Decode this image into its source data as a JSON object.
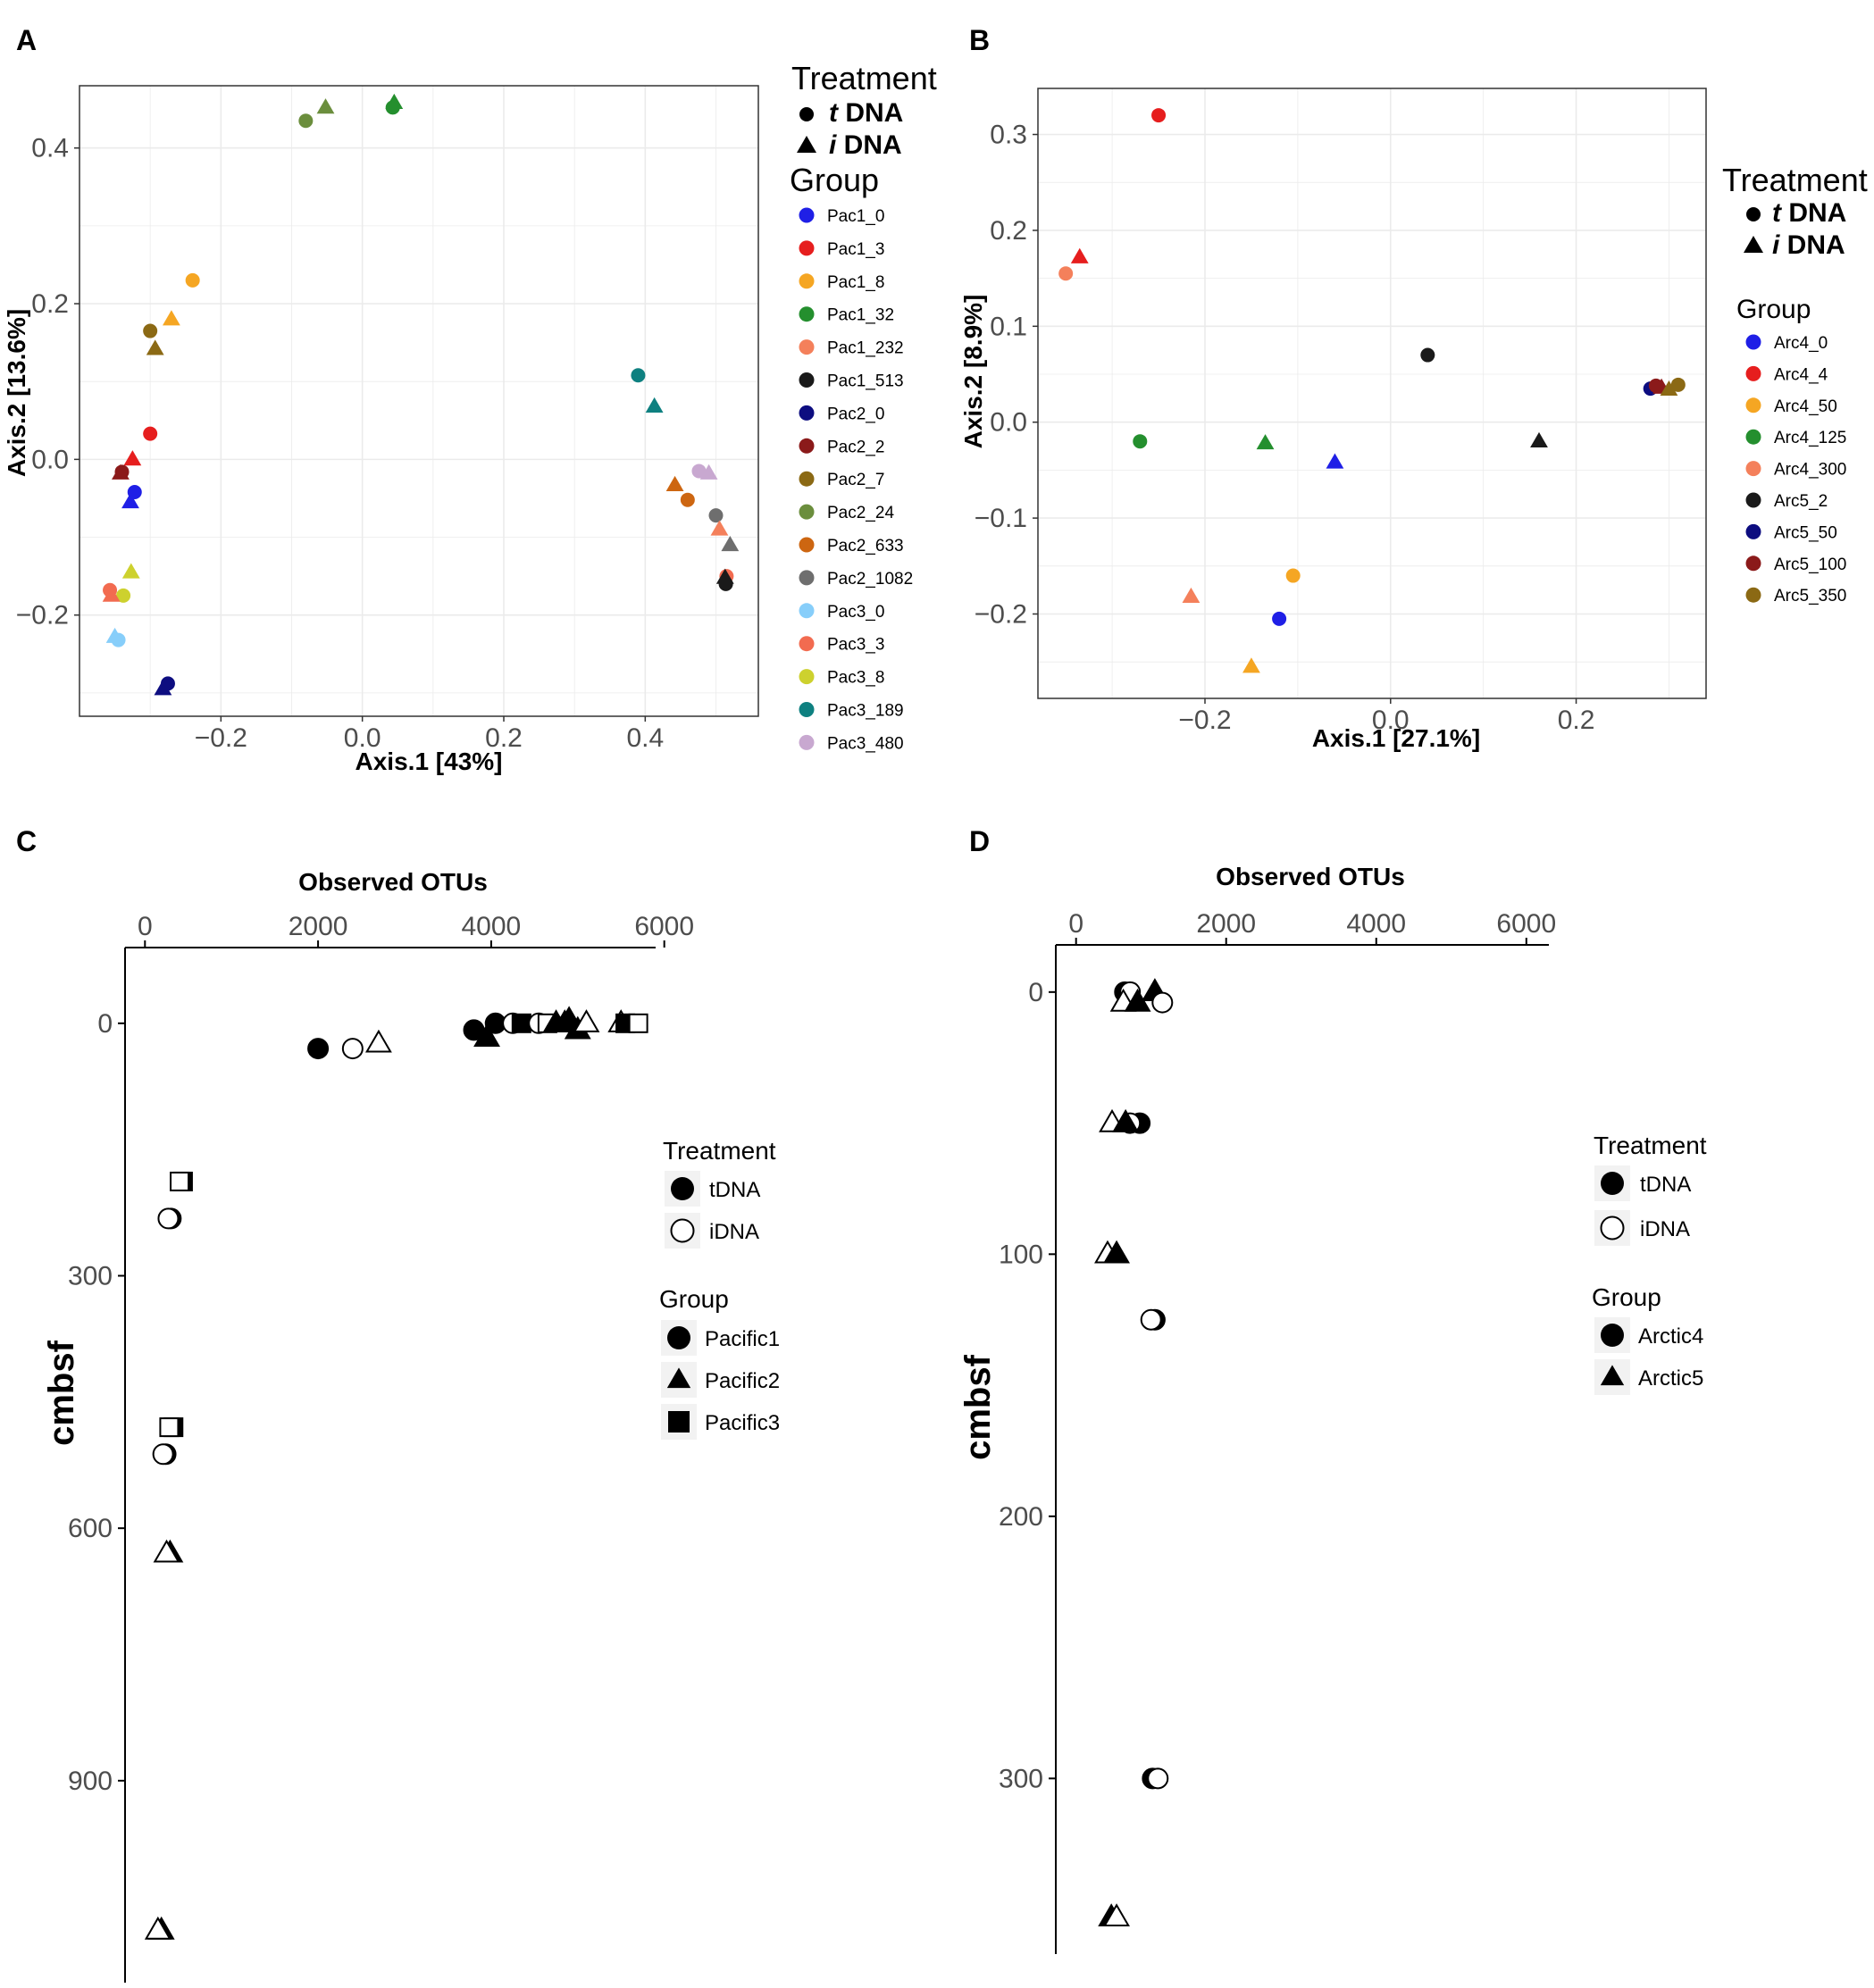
{
  "colors": {
    "panel_bg": "#ffffff",
    "grid": "#ebebeb",
    "border": "#333333",
    "tick_text": "#4d4d4d",
    "legend_key_bg": "#f2f2f2"
  },
  "chart_data": [
    {
      "panel": "A",
      "type": "scatter",
      "title": "",
      "xlabel": "Axis.1   [43%]",
      "ylabel": "Axis.2   [13.6%]",
      "xlim": [
        -0.4,
        0.56
      ],
      "ylim": [
        -0.33,
        0.48
      ],
      "xticks": [
        -0.2,
        0.0,
        0.2,
        0.4
      ],
      "xtick_labels": [
        "−0.2",
        "0.0",
        "0.2",
        "0.4"
      ],
      "yticks": [
        -0.2,
        0.0,
        0.2,
        0.4
      ],
      "ytick_labels": [
        "−0.2",
        "0.0",
        "0.2",
        "0.4"
      ],
      "legend_treatment_title": "Treatment",
      "treatments": [
        {
          "shape": "circle",
          "prefix": "t",
          "label": " DNA"
        },
        {
          "shape": "triangle",
          "prefix": "i",
          "label": " DNA"
        }
      ],
      "legend_group_title": "Group",
      "groups": [
        {
          "name": "Pac1_0",
          "color": "#1f1fe6"
        },
        {
          "name": "Pac1_3",
          "color": "#e61e1e"
        },
        {
          "name": "Pac1_8",
          "color": "#f5a623"
        },
        {
          "name": "Pac1_32",
          "color": "#248f2e"
        },
        {
          "name": "Pac1_232",
          "color": "#f4805b"
        },
        {
          "name": "Pac1_513",
          "color": "#1a1a1a"
        },
        {
          "name": "Pac2_0",
          "color": "#0d0d80"
        },
        {
          "name": "Pac2_2",
          "color": "#8b1a1a"
        },
        {
          "name": "Pac2_7",
          "color": "#8b6914"
        },
        {
          "name": "Pac2_24",
          "color": "#6b8e3d"
        },
        {
          "name": "Pac2_633",
          "color": "#cd6611"
        },
        {
          "name": "Pac2_1082",
          "color": "#6e6e6e"
        },
        {
          "name": "Pac3_0",
          "color": "#87cefa"
        },
        {
          "name": "Pac3_3",
          "color": "#f26b50"
        },
        {
          "name": "Pac3_8",
          "color": "#cdd12e"
        },
        {
          "name": "Pac3_189",
          "color": "#0e8080"
        },
        {
          "name": "Pac3_480",
          "color": "#c8a8d0"
        }
      ],
      "points": [
        {
          "x": -0.08,
          "y": 0.435,
          "shape": "circle",
          "group": "Pac2_24"
        },
        {
          "x": -0.052,
          "y": 0.452,
          "shape": "triangle",
          "group": "Pac2_24"
        },
        {
          "x": 0.043,
          "y": 0.452,
          "shape": "circle",
          "group": "Pac1_32"
        },
        {
          "x": 0.045,
          "y": 0.458,
          "shape": "triangle",
          "group": "Pac1_32"
        },
        {
          "x": -0.24,
          "y": 0.23,
          "shape": "circle",
          "group": "Pac1_8"
        },
        {
          "x": -0.27,
          "y": 0.18,
          "shape": "triangle",
          "group": "Pac1_8"
        },
        {
          "x": -0.3,
          "y": 0.165,
          "shape": "circle",
          "group": "Pac2_7"
        },
        {
          "x": -0.293,
          "y": 0.142,
          "shape": "triangle",
          "group": "Pac2_7"
        },
        {
          "x": -0.3,
          "y": 0.033,
          "shape": "circle",
          "group": "Pac1_3"
        },
        {
          "x": -0.325,
          "y": 0.0,
          "shape": "triangle",
          "group": "Pac1_3"
        },
        {
          "x": -0.34,
          "y": -0.016,
          "shape": "circle",
          "group": "Pac2_2"
        },
        {
          "x": -0.342,
          "y": -0.018,
          "shape": "triangle",
          "group": "Pac2_2"
        },
        {
          "x": -0.322,
          "y": -0.042,
          "shape": "circle",
          "group": "Pac1_0"
        },
        {
          "x": -0.328,
          "y": -0.055,
          "shape": "triangle",
          "group": "Pac1_0"
        },
        {
          "x": -0.327,
          "y": -0.145,
          "shape": "triangle",
          "group": "Pac3_8"
        },
        {
          "x": -0.338,
          "y": -0.175,
          "shape": "circle",
          "group": "Pac3_8"
        },
        {
          "x": -0.357,
          "y": -0.168,
          "shape": "circle",
          "group": "Pac3_3"
        },
        {
          "x": -0.355,
          "y": -0.175,
          "shape": "triangle",
          "group": "Pac3_3"
        },
        {
          "x": -0.345,
          "y": -0.232,
          "shape": "circle",
          "group": "Pac3_0"
        },
        {
          "x": -0.35,
          "y": -0.228,
          "shape": "triangle",
          "group": "Pac3_0"
        },
        {
          "x": -0.275,
          "y": -0.288,
          "shape": "circle",
          "group": "Pac2_0"
        },
        {
          "x": -0.282,
          "y": -0.295,
          "shape": "triangle",
          "group": "Pac2_0"
        },
        {
          "x": 0.39,
          "y": 0.108,
          "shape": "circle",
          "group": "Pac3_189"
        },
        {
          "x": 0.413,
          "y": 0.068,
          "shape": "triangle",
          "group": "Pac3_189"
        },
        {
          "x": 0.476,
          "y": -0.015,
          "shape": "circle",
          "group": "Pac3_480"
        },
        {
          "x": 0.49,
          "y": -0.018,
          "shape": "triangle",
          "group": "Pac3_480"
        },
        {
          "x": 0.442,
          "y": -0.033,
          "shape": "triangle",
          "group": "Pac2_633"
        },
        {
          "x": 0.46,
          "y": -0.052,
          "shape": "circle",
          "group": "Pac2_633"
        },
        {
          "x": 0.5,
          "y": -0.072,
          "shape": "circle",
          "group": "Pac2_1082"
        },
        {
          "x": 0.52,
          "y": -0.11,
          "shape": "triangle",
          "group": "Pac2_1082"
        },
        {
          "x": 0.505,
          "y": -0.09,
          "shape": "triangle",
          "group": "Pac1_232"
        },
        {
          "x": 0.515,
          "y": -0.15,
          "shape": "circle",
          "group": "Pac3_3"
        },
        {
          "x": 0.514,
          "y": -0.16,
          "shape": "circle",
          "group": "Pac1_513"
        },
        {
          "x": 0.513,
          "y": -0.152,
          "shape": "triangle",
          "group": "Pac1_513"
        }
      ]
    },
    {
      "panel": "B",
      "type": "scatter",
      "title": "",
      "xlabel": "Axis.1    [27.1%]",
      "ylabel": "Axis.2   [8.9%]",
      "xlim": [
        -0.38,
        0.34
      ],
      "ylim": [
        -0.288,
        0.348
      ],
      "xticks": [
        -0.2,
        0.0,
        0.2
      ],
      "xtick_labels": [
        "−0.2",
        "0.0",
        "0.2"
      ],
      "yticks": [
        -0.2,
        -0.1,
        0.0,
        0.1,
        0.2,
        0.3
      ],
      "ytick_labels": [
        "−0.2",
        "−0.1",
        "0.0",
        "0.1",
        "0.2",
        "0.3"
      ],
      "legend_treatment_title": "Treatment",
      "treatments": [
        {
          "shape": "circle",
          "prefix": "t",
          "label": " DNA"
        },
        {
          "shape": "triangle",
          "prefix": "i",
          "label": " DNA"
        }
      ],
      "legend_group_title": "Group",
      "groups": [
        {
          "name": "Arc4_0",
          "color": "#1f1fe6"
        },
        {
          "name": "Arc4_4",
          "color": "#e61e1e"
        },
        {
          "name": "Arc4_50",
          "color": "#f5a623"
        },
        {
          "name": "Arc4_125",
          "color": "#248f2e"
        },
        {
          "name": "Arc4_300",
          "color": "#f4805b"
        },
        {
          "name": "Arc5_2",
          "color": "#1a1a1a"
        },
        {
          "name": "Arc5_50",
          "color": "#0d0d80"
        },
        {
          "name": "Arc5_100",
          "color": "#8b1a1a"
        },
        {
          "name": "Arc5_350",
          "color": "#8b6914"
        }
      ],
      "points": [
        {
          "x": -0.25,
          "y": 0.32,
          "shape": "circle",
          "group": "Arc4_4"
        },
        {
          "x": -0.335,
          "y": 0.172,
          "shape": "triangle",
          "group": "Arc4_4"
        },
        {
          "x": -0.35,
          "y": 0.155,
          "shape": "circle",
          "group": "Arc4_300"
        },
        {
          "x": 0.04,
          "y": 0.07,
          "shape": "circle",
          "group": "Arc5_2"
        },
        {
          "x": 0.16,
          "y": -0.02,
          "shape": "triangle",
          "group": "Arc5_2"
        },
        {
          "x": -0.27,
          "y": -0.02,
          "shape": "circle",
          "group": "Arc4_125"
        },
        {
          "x": -0.135,
          "y": -0.022,
          "shape": "triangle",
          "group": "Arc4_125"
        },
        {
          "x": -0.06,
          "y": -0.042,
          "shape": "triangle",
          "group": "Arc4_0"
        },
        {
          "x": -0.105,
          "y": -0.16,
          "shape": "circle",
          "group": "Arc4_50"
        },
        {
          "x": -0.12,
          "y": -0.205,
          "shape": "circle",
          "group": "Arc4_0"
        },
        {
          "x": -0.215,
          "y": -0.182,
          "shape": "triangle",
          "group": "Arc4_300"
        },
        {
          "x": -0.15,
          "y": -0.255,
          "shape": "triangle",
          "group": "Arc4_50"
        },
        {
          "x": 0.28,
          "y": 0.035,
          "shape": "circle",
          "group": "Arc5_50"
        },
        {
          "x": 0.286,
          "y": 0.038,
          "shape": "circle",
          "group": "Arc5_100"
        },
        {
          "x": 0.292,
          "y": 0.036,
          "shape": "triangle",
          "group": "Arc5_100"
        },
        {
          "x": 0.3,
          "y": 0.034,
          "shape": "triangle",
          "group": "Arc5_350"
        },
        {
          "x": 0.31,
          "y": 0.039,
          "shape": "circle",
          "group": "Arc5_350"
        }
      ]
    },
    {
      "panel": "C",
      "type": "scatter",
      "title": "Observed OTUs",
      "xlabel": "Observed OTUs",
      "ylabel": "cmbsf",
      "xlim": [
        -230,
        5900
      ],
      "ylim": [
        -90,
        1140
      ],
      "y_inverted": true,
      "xticks": [
        0,
        2000,
        4000,
        6000
      ],
      "xtick_labels": [
        "0",
        "2000",
        "4000",
        "6000"
      ],
      "yticks": [
        0,
        300,
        600,
        900
      ],
      "ytick_labels": [
        "0",
        "300",
        "600",
        "900"
      ],
      "legend_treatment_title": "Treatment",
      "treatments": [
        {
          "fill": "filled",
          "label": "tDNA"
        },
        {
          "fill": "open",
          "label": "iDNA"
        }
      ],
      "legend_group_title": "Group",
      "groups": [
        {
          "name": "Pacific1",
          "shape": "circle"
        },
        {
          "name": "Pacific2",
          "shape": "triangle"
        },
        {
          "name": "Pacific3",
          "shape": "square"
        }
      ],
      "points": [
        {
          "x": 2000,
          "y": 30,
          "shape": "circle",
          "fill": "filled"
        },
        {
          "x": 2400,
          "y": 30,
          "shape": "circle",
          "fill": "open"
        },
        {
          "x": 2700,
          "y": 24,
          "shape": "triangle",
          "fill": "open"
        },
        {
          "x": 3800,
          "y": 8,
          "shape": "circle",
          "fill": "filled"
        },
        {
          "x": 3950,
          "y": 17,
          "shape": "triangle",
          "fill": "filled"
        },
        {
          "x": 4050,
          "y": 0,
          "shape": "circle",
          "fill": "filled"
        },
        {
          "x": 4250,
          "y": 0,
          "shape": "circle",
          "fill": "open"
        },
        {
          "x": 4350,
          "y": 0,
          "shape": "square",
          "fill": "filled"
        },
        {
          "x": 4550,
          "y": 0,
          "shape": "circle",
          "fill": "open"
        },
        {
          "x": 4650,
          "y": 0,
          "shape": "square",
          "fill": "open"
        },
        {
          "x": 4750,
          "y": 0,
          "shape": "triangle",
          "fill": "filled"
        },
        {
          "x": 4850,
          "y": 0,
          "shape": "triangle",
          "fill": "filled"
        },
        {
          "x": 5000,
          "y": 8,
          "shape": "triangle",
          "fill": "filled"
        },
        {
          "x": 4900,
          "y": -4,
          "shape": "triangle",
          "fill": "filled"
        },
        {
          "x": 5100,
          "y": 0,
          "shape": "triangle",
          "fill": "open"
        },
        {
          "x": 5500,
          "y": 0,
          "shape": "triangle",
          "fill": "open"
        },
        {
          "x": 5550,
          "y": 0,
          "shape": "square",
          "fill": "filled"
        },
        {
          "x": 5700,
          "y": 0,
          "shape": "square",
          "fill": "open"
        },
        {
          "x": 440,
          "y": 188,
          "shape": "square",
          "fill": "filled"
        },
        {
          "x": 400,
          "y": 188,
          "shape": "square",
          "fill": "open"
        },
        {
          "x": 300,
          "y": 232,
          "shape": "circle",
          "fill": "filled"
        },
        {
          "x": 270,
          "y": 232,
          "shape": "circle",
          "fill": "open"
        },
        {
          "x": 330,
          "y": 480,
          "shape": "square",
          "fill": "filled"
        },
        {
          "x": 280,
          "y": 480,
          "shape": "square",
          "fill": "open"
        },
        {
          "x": 240,
          "y": 512,
          "shape": "circle",
          "fill": "filled"
        },
        {
          "x": 210,
          "y": 512,
          "shape": "circle",
          "fill": "open"
        },
        {
          "x": 290,
          "y": 630,
          "shape": "triangle",
          "fill": "filled"
        },
        {
          "x": 250,
          "y": 630,
          "shape": "triangle",
          "fill": "open"
        },
        {
          "x": 190,
          "y": 1078,
          "shape": "triangle",
          "fill": "filled"
        },
        {
          "x": 150,
          "y": 1078,
          "shape": "triangle",
          "fill": "open"
        }
      ]
    },
    {
      "panel": "D",
      "type": "scatter",
      "title": "Observed OTUs",
      "xlabel": "Observed OTUs",
      "ylabel": "cmbsf",
      "xlim": [
        -270,
        6300
      ],
      "ylim": [
        -18,
        367
      ],
      "y_inverted": true,
      "xticks": [
        0,
        2000,
        4000,
        6000
      ],
      "xtick_labels": [
        "0",
        "2000",
        "4000",
        "6000"
      ],
      "yticks": [
        0,
        100,
        200,
        300
      ],
      "ytick_labels": [
        "0",
        "100",
        "200",
        "300"
      ],
      "legend_treatment_title": "Treatment",
      "treatments": [
        {
          "fill": "filled",
          "label": "tDNA"
        },
        {
          "fill": "open",
          "label": "iDNA"
        }
      ],
      "legend_group_title": "Group",
      "groups": [
        {
          "name": "Arctic4",
          "shape": "circle"
        },
        {
          "name": "Arctic5",
          "shape": "triangle"
        }
      ],
      "points": [
        {
          "x": 650,
          "y": 0,
          "shape": "circle",
          "fill": "filled"
        },
        {
          "x": 720,
          "y": 0,
          "shape": "circle",
          "fill": "open"
        },
        {
          "x": 1050,
          "y": 0,
          "shape": "triangle",
          "fill": "filled"
        },
        {
          "x": 1150,
          "y": 4,
          "shape": "circle",
          "fill": "open"
        },
        {
          "x": 630,
          "y": 4,
          "shape": "triangle",
          "fill": "open"
        },
        {
          "x": 820,
          "y": 4,
          "shape": "triangle",
          "fill": "filled"
        },
        {
          "x": 850,
          "y": 50,
          "shape": "circle",
          "fill": "filled"
        },
        {
          "x": 720,
          "y": 50,
          "shape": "circle",
          "fill": "open"
        },
        {
          "x": 480,
          "y": 50,
          "shape": "triangle",
          "fill": "open"
        },
        {
          "x": 660,
          "y": 50,
          "shape": "triangle",
          "fill": "filled"
        },
        {
          "x": 420,
          "y": 100,
          "shape": "triangle",
          "fill": "open"
        },
        {
          "x": 540,
          "y": 100,
          "shape": "triangle",
          "fill": "filled"
        },
        {
          "x": 1050,
          "y": 125,
          "shape": "circle",
          "fill": "filled"
        },
        {
          "x": 1000,
          "y": 125,
          "shape": "circle",
          "fill": "open"
        },
        {
          "x": 1020,
          "y": 300,
          "shape": "circle",
          "fill": "filled"
        },
        {
          "x": 1090,
          "y": 300,
          "shape": "circle",
          "fill": "open"
        },
        {
          "x": 470,
          "y": 353,
          "shape": "triangle",
          "fill": "filled"
        },
        {
          "x": 540,
          "y": 353,
          "shape": "triangle",
          "fill": "open"
        }
      ]
    }
  ]
}
